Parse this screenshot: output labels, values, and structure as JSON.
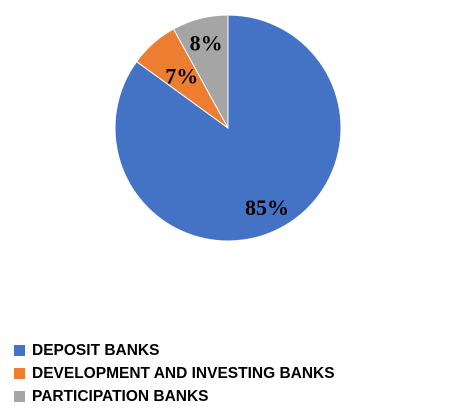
{
  "chart_data": {
    "type": "pie",
    "title": "",
    "slices": [
      {
        "label": "DEPOSIT BANKS",
        "value": 85,
        "display": "85%",
        "color": "#4472C4"
      },
      {
        "label": "DEVELOPMENT AND INVESTING BANKS",
        "value": 7,
        "display": "7%",
        "color": "#ED7D31"
      },
      {
        "label": "PARTICIPATION BANKS",
        "value": 8,
        "display": "8%",
        "color": "#A5A5A5"
      }
    ],
    "legend_position": "bottom-left",
    "start_angle": "12 o'clock",
    "direction": "clockwise"
  }
}
